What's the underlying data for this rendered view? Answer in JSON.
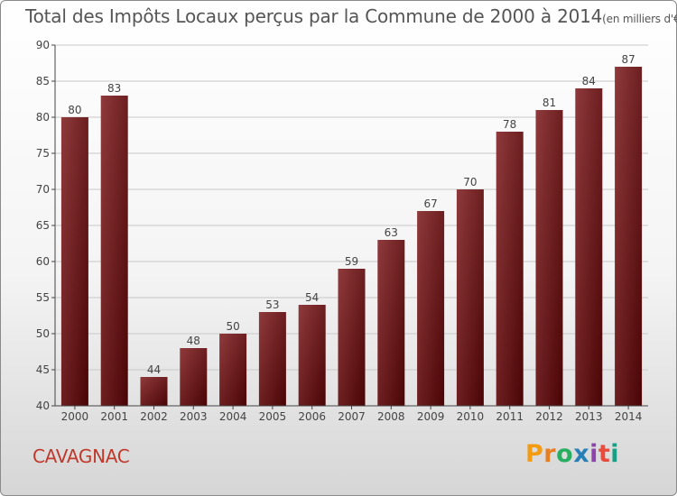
{
  "header": {
    "title": "Total des Impôts Locaux perçus par la Commune de 2000 à 2014",
    "unit": "(en milliers d'€)"
  },
  "footer": {
    "commune": "CAVAGNAC"
  },
  "brand": {
    "letters": [
      "P",
      "r",
      "o",
      "x",
      "i",
      "t",
      "i"
    ],
    "colors": [
      "#f39c12",
      "#e67e22",
      "#27ae60",
      "#2980b9",
      "#8e44ad",
      "#e74c3c",
      "#16a085"
    ]
  },
  "colors": {
    "bar_light": "#8f3a3c",
    "bar_dark": "#4a0405",
    "axis": "#444444",
    "grid": "#c8c8c8"
  },
  "chart_data": {
    "type": "bar",
    "title": "Total des Impôts Locaux perçus par la Commune de 2000 à 2014",
    "xlabel": "",
    "ylabel": "",
    "categories": [
      "2000",
      "2001",
      "2002",
      "2003",
      "2004",
      "2005",
      "2006",
      "2007",
      "2008",
      "2009",
      "2010",
      "2011",
      "2012",
      "2013",
      "2014"
    ],
    "values": [
      80,
      83,
      44,
      48,
      50,
      53,
      54,
      59,
      63,
      67,
      70,
      78,
      81,
      84,
      87
    ],
    "ylim": [
      40,
      90
    ],
    "yticks": [
      40,
      45,
      50,
      55,
      60,
      65,
      70,
      75,
      80,
      85,
      90
    ],
    "grid": true
  }
}
